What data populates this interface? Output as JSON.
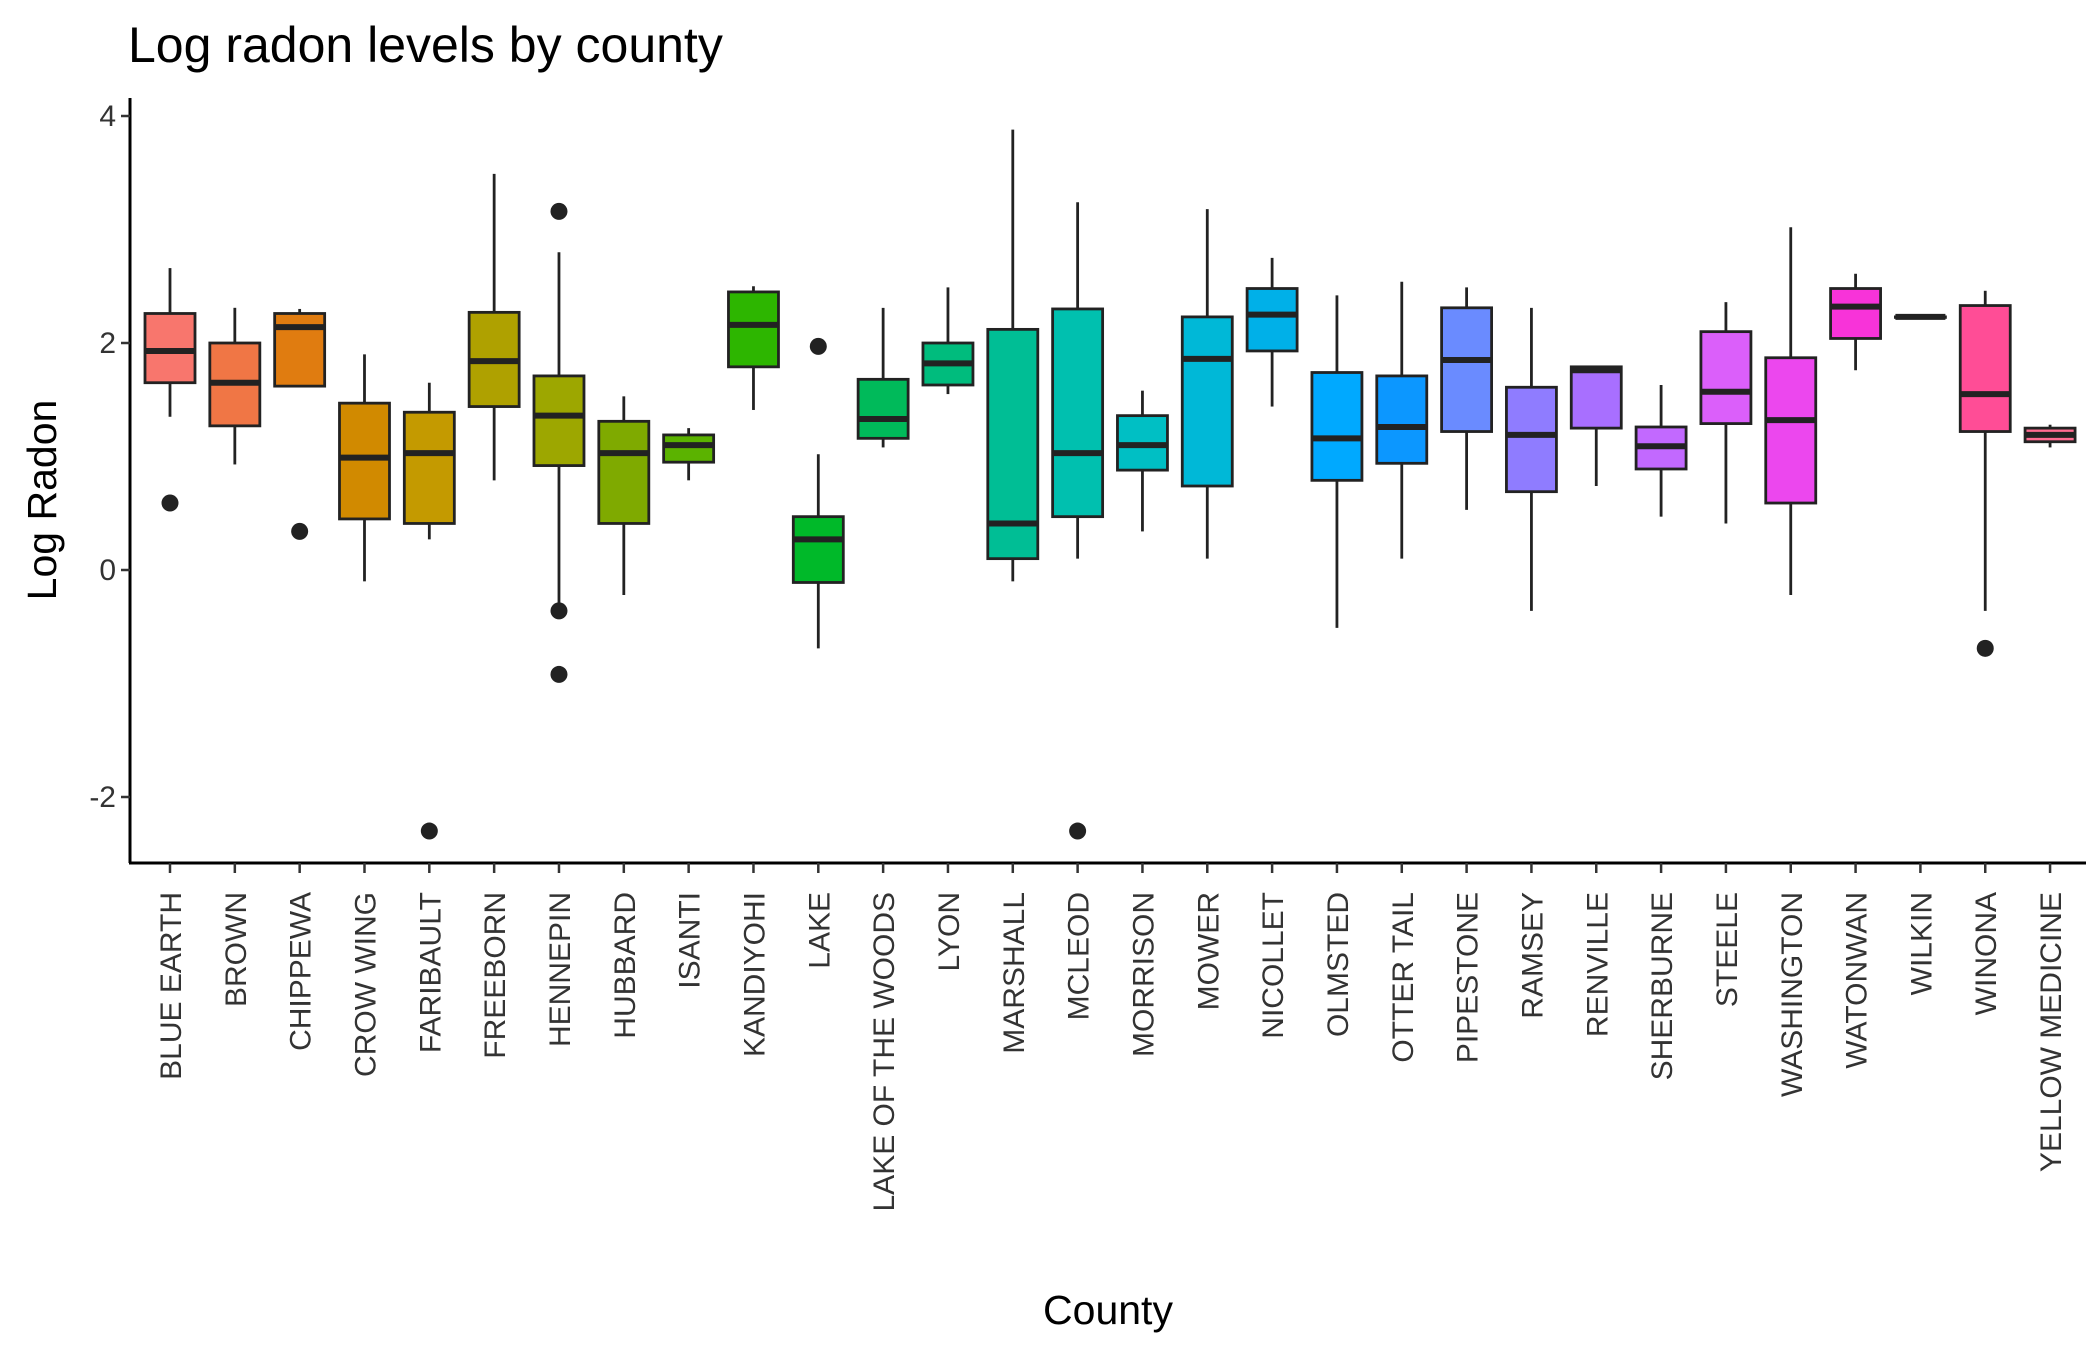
{
  "chart_data": {
    "type": "boxplot",
    "title": "Log radon levels by county",
    "xlabel": "County",
    "ylabel": "Log Radon",
    "ylim": [
      -2.6,
      4.15
    ],
    "yticks": [
      {
        "value": -2,
        "label": "-2"
      },
      {
        "value": 0,
        "label": "0"
      },
      {
        "value": 2,
        "label": "2"
      },
      {
        "value": 4,
        "label": "4"
      }
    ],
    "grid": false,
    "legend": "none",
    "series": [
      {
        "county": "BLUE EARTH",
        "color": "#F8766D",
        "low": 1.35,
        "q1": 1.65,
        "median": 1.93,
        "q3": 2.26,
        "high": 2.66,
        "outliers": [
          0.59
        ]
      },
      {
        "county": "BROWN",
        "color": "#F07645",
        "low": 0.93,
        "q1": 1.27,
        "median": 1.65,
        "q3": 2.0,
        "high": 2.31,
        "outliers": []
      },
      {
        "county": "CHIPPEWA",
        "color": "#E07C10",
        "low": 1.62,
        "q1": 1.62,
        "median": 2.14,
        "q3": 2.26,
        "high": 2.3,
        "outliers": [
          0.34
        ]
      },
      {
        "county": "CROW WING",
        "color": "#D18A00",
        "low": -0.1,
        "q1": 0.45,
        "median": 0.99,
        "q3": 1.47,
        "high": 1.9,
        "outliers": []
      },
      {
        "county": "FARIBAULT",
        "color": "#C49A00",
        "low": 0.27,
        "q1": 0.41,
        "median": 1.03,
        "q3": 1.39,
        "high": 1.65,
        "outliers": [
          -2.3
        ]
      },
      {
        "county": "FREEBORN",
        "color": "#AFA100",
        "low": 0.79,
        "q1": 1.44,
        "median": 1.84,
        "q3": 2.27,
        "high": 3.49,
        "outliers": []
      },
      {
        "county": "HENNEPIN",
        "color": "#9DA700",
        "low": -0.36,
        "q1": 0.92,
        "median": 1.36,
        "q3": 1.71,
        "high": 2.8,
        "outliers": [
          3.16,
          -0.36,
          -0.92
        ]
      },
      {
        "county": "HUBBARD",
        "color": "#7FAA00",
        "low": -0.22,
        "q1": 0.41,
        "median": 1.03,
        "q3": 1.31,
        "high": 1.53,
        "outliers": []
      },
      {
        "county": "ISANTI",
        "color": "#5BB300",
        "low": 0.79,
        "q1": 0.95,
        "median": 1.1,
        "q3": 1.19,
        "high": 1.25,
        "outliers": []
      },
      {
        "county": "KANDIYOHI",
        "color": "#2DB600",
        "low": 1.41,
        "q1": 1.79,
        "median": 2.16,
        "q3": 2.45,
        "high": 2.5,
        "outliers": []
      },
      {
        "county": "LAKE",
        "color": "#00B929",
        "low": -0.69,
        "q1": -0.11,
        "median": 0.27,
        "q3": 0.47,
        "high": 1.02,
        "outliers": [
          1.97
        ]
      },
      {
        "county": "LAKE OF THE WOODS",
        "color": "#00BA5A",
        "low": 1.08,
        "q1": 1.16,
        "median": 1.33,
        "q3": 1.68,
        "high": 2.31,
        "outliers": []
      },
      {
        "county": "LYON",
        "color": "#00BC7D",
        "low": 1.55,
        "q1": 1.63,
        "median": 1.82,
        "q3": 2.0,
        "high": 2.49,
        "outliers": []
      },
      {
        "county": "MARSHALL",
        "color": "#00BE95",
        "low": -0.1,
        "q1": 0.1,
        "median": 0.41,
        "q3": 2.12,
        "high": 3.88,
        "outliers": []
      },
      {
        "county": "MCLEOD",
        "color": "#00C0AF",
        "low": 0.1,
        "q1": 0.47,
        "median": 1.03,
        "q3": 2.3,
        "high": 3.24,
        "outliers": [
          -2.3
        ]
      },
      {
        "county": "MORRISON",
        "color": "#00BFC4",
        "low": 0.34,
        "q1": 0.88,
        "median": 1.1,
        "q3": 1.36,
        "high": 1.58,
        "outliers": []
      },
      {
        "county": "MOWER",
        "color": "#00B8D7",
        "low": 0.1,
        "q1": 0.74,
        "median": 1.86,
        "q3": 2.23,
        "high": 3.18,
        "outliers": []
      },
      {
        "county": "NICOLLET",
        "color": "#00B0E8",
        "low": 1.44,
        "q1": 1.93,
        "median": 2.25,
        "q3": 2.48,
        "high": 2.75,
        "outliers": []
      },
      {
        "county": "OLMSTED",
        "color": "#00A9FF",
        "low": -0.51,
        "q1": 0.79,
        "median": 1.16,
        "q3": 1.74,
        "high": 2.42,
        "outliers": []
      },
      {
        "county": "OTTER TAIL",
        "color": "#0C97FF",
        "low": 0.1,
        "q1": 0.94,
        "median": 1.26,
        "q3": 1.71,
        "high": 2.54,
        "outliers": []
      },
      {
        "county": "PIPESTONE",
        "color": "#6A8BFF",
        "low": 0.53,
        "q1": 1.22,
        "median": 1.85,
        "q3": 2.31,
        "high": 2.49,
        "outliers": []
      },
      {
        "county": "RAMSEY",
        "color": "#8F7CFF",
        "low": -0.36,
        "q1": 0.69,
        "median": 1.19,
        "q3": 1.61,
        "high": 2.31,
        "outliers": []
      },
      {
        "county": "RENVILLE",
        "color": "#A86FFF",
        "low": 0.74,
        "q1": 1.25,
        "median": 1.76,
        "q3": 1.79,
        "high": 1.79,
        "outliers": []
      },
      {
        "county": "SHERBURNE",
        "color": "#C269FF",
        "low": 0.47,
        "q1": 0.89,
        "median": 1.09,
        "q3": 1.26,
        "high": 1.63,
        "outliers": []
      },
      {
        "county": "STEELE",
        "color": "#DB5FFA",
        "low": 0.41,
        "q1": 1.29,
        "median": 1.57,
        "q3": 2.1,
        "high": 2.36,
        "outliers": []
      },
      {
        "county": "WASHINGTON",
        "color": "#EC47EE",
        "low": -0.22,
        "q1": 0.59,
        "median": 1.32,
        "q3": 1.87,
        "high": 3.02,
        "outliers": []
      },
      {
        "county": "WATONWAN",
        "color": "#F833D9",
        "low": 1.76,
        "q1": 2.04,
        "median": 2.32,
        "q3": 2.48,
        "high": 2.61,
        "outliers": []
      },
      {
        "county": "WILKIN",
        "color": "#FF3CC0",
        "low": 2.23,
        "q1": 2.23,
        "median": 2.23,
        "q3": 2.23,
        "high": 2.23,
        "outliers": []
      },
      {
        "county": "WINONA",
        "color": "#FF4D96",
        "low": -0.36,
        "q1": 1.22,
        "median": 1.55,
        "q3": 2.33,
        "high": 2.46,
        "outliers": [
          -0.69
        ]
      },
      {
        "county": "YELLOW MEDICINE",
        "color": "#FF6C91",
        "low": 1.08,
        "q1": 1.13,
        "median": 1.19,
        "q3": 1.25,
        "high": 1.28,
        "outliers": []
      }
    ]
  }
}
